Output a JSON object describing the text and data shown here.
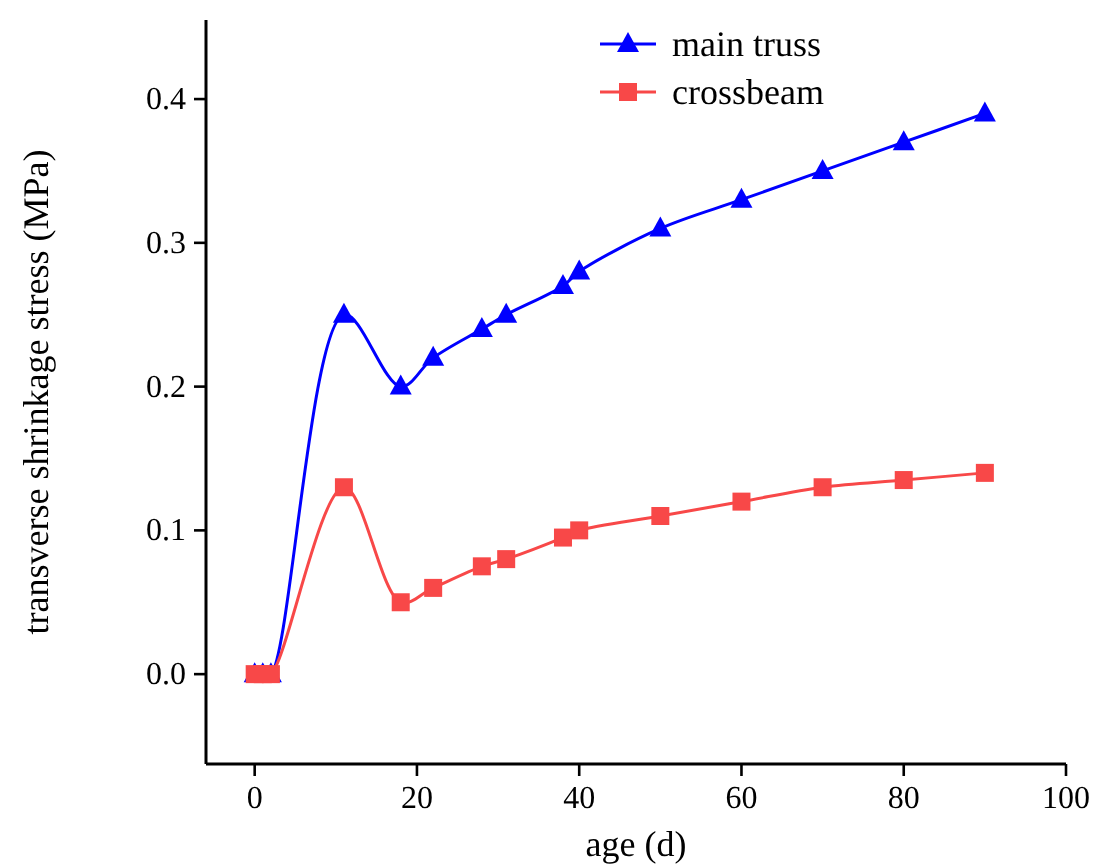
{
  "chart_data": {
    "type": "line",
    "xlabel": "age (d)",
    "ylabel": "transverse shrinkage stress (MPa)",
    "xlim": [
      -6,
      100
    ],
    "xticks": [
      0,
      20,
      40,
      60,
      80,
      100
    ],
    "ylim": [
      -0.0625,
      0.455
    ],
    "yticks": [
      {
        "value": 0,
        "label": "0.0"
      },
      {
        "value": 0.1,
        "label": "0.1"
      },
      {
        "value": 0.2,
        "label": "0.2"
      },
      {
        "value": 0.3,
        "label": "0.3"
      },
      {
        "value": 0.4,
        "label": "0.4"
      }
    ],
    "grid": false,
    "legend": "top right",
    "line_style": "solid",
    "series": [
      {
        "name": "main truss",
        "color": "#0000ff",
        "marker": "triangle",
        "x": [
          0,
          1,
          2,
          11,
          18,
          22,
          28,
          31,
          38,
          40,
          50,
          60,
          70,
          80,
          90
        ],
        "values": [
          0,
          0,
          0,
          0.25,
          0.2,
          0.22,
          0.24,
          0.25,
          0.27,
          0.28,
          0.31,
          0.33,
          0.35,
          0.37,
          0.39
        ]
      },
      {
        "name": "crossbeam",
        "color": "#f84848",
        "marker": "square",
        "x": [
          0,
          1,
          2,
          11,
          18,
          22,
          28,
          31,
          38,
          40,
          50,
          60,
          70,
          80,
          90
        ],
        "values": [
          0,
          0,
          0,
          0.13,
          0.05,
          0.06,
          0.075,
          0.08,
          0.095,
          0.1,
          0.11,
          0.12,
          0.13,
          0.135,
          0.14
        ]
      }
    ]
  }
}
